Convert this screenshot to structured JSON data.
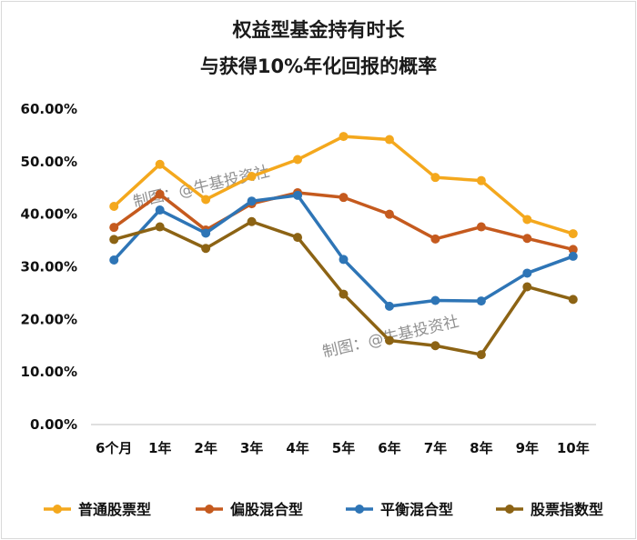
{
  "chart_data": {
    "type": "line",
    "title": [
      "权益型基金持有时长",
      "与获得10%年化回报的概率"
    ],
    "categories": [
      "6个月",
      "1年",
      "2年",
      "3年",
      "4年",
      "5年",
      "6年",
      "7年",
      "8年",
      "9年",
      "10年"
    ],
    "ylim": [
      0,
      60
    ],
    "y_ticks": [
      "0.00%",
      "10.00%",
      "20.00%",
      "30.00%",
      "40.00%",
      "50.00%",
      "60.00%"
    ],
    "legend_position": "bottom",
    "series": [
      {
        "name": "普通股票型",
        "color": "#f4a81d",
        "values": [
          41.5,
          49.5,
          42.8,
          47.2,
          50.4,
          54.8,
          54.2,
          47.0,
          46.4,
          39.0,
          36.3
        ]
      },
      {
        "name": "偏股混合型",
        "color": "#c55a1e",
        "values": [
          37.5,
          43.8,
          37.0,
          42.0,
          44.1,
          43.2,
          40.0,
          35.3,
          37.6,
          35.4,
          33.3
        ]
      },
      {
        "name": "平衡混合型",
        "color": "#2e75b6",
        "values": [
          31.3,
          40.8,
          36.4,
          42.5,
          43.6,
          31.4,
          22.5,
          23.6,
          23.5,
          28.8,
          32.0
        ]
      },
      {
        "name": "股票指数型",
        "color": "#8c6314",
        "values": [
          35.2,
          37.6,
          33.5,
          38.6,
          35.6,
          24.8,
          16.0,
          15.0,
          13.3,
          26.2,
          23.8
        ]
      }
    ],
    "watermarks": [
      "制图：@牛基投资社",
      "制图：@牛基投资社"
    ]
  }
}
